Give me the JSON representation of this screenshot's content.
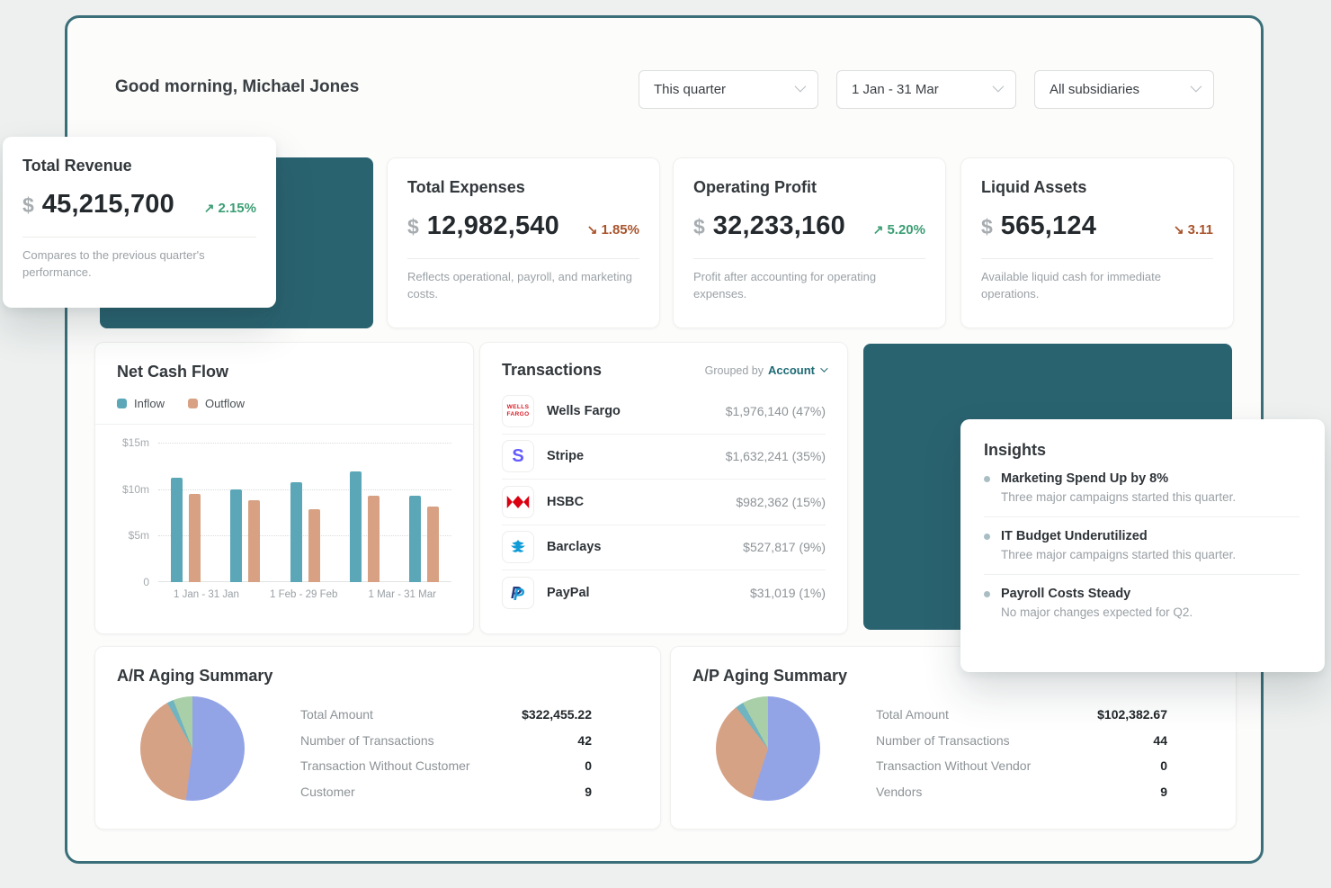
{
  "header": {
    "greeting": "Good morning, Michael Jones",
    "filters": [
      {
        "label": "This quarter"
      },
      {
        "label": "1 Jan - 31 Mar"
      },
      {
        "label": "All subsidiaries"
      }
    ]
  },
  "kpis": [
    {
      "title": "Total Revenue",
      "currency": "$",
      "value": "45,215,700",
      "trend": "up",
      "arrow": "↗",
      "change": "2.15%",
      "description": "Compares to the previous quarter's performance."
    },
    {
      "title": "Total Expenses",
      "currency": "$",
      "value": "12,982,540",
      "trend": "down",
      "arrow": "↘",
      "change": "1.85%",
      "description": "Reflects operational, payroll, and marketing costs."
    },
    {
      "title": "Operating Profit",
      "currency": "$",
      "value": "32,233,160",
      "trend": "up",
      "arrow": "↗",
      "change": "5.20%",
      "description": "Profit after accounting for operating expenses."
    },
    {
      "title": "Liquid Assets",
      "currency": "$",
      "value": "565,124",
      "trend": "down",
      "arrow": "↘",
      "change": "3.11",
      "description": "Available liquid cash for immediate operations."
    }
  ],
  "chart_data": [
    {
      "type": "bar",
      "title": "Net Cash Flow",
      "categories": [
        "1 Jan - 31 Jan",
        "1 Feb - 29 Feb",
        "1 Mar - 31 Mar"
      ],
      "series": [
        {
          "name": "Inflow",
          "color": "#5ba7b8",
          "values_millions": [
            11.2,
            10.0,
            10.7,
            11.9,
            9.3
          ]
        },
        {
          "name": "Outflow",
          "color": "#d8a183",
          "values_millions": [
            9.5,
            8.8,
            7.8,
            9.3,
            8.1
          ]
        }
      ],
      "y_ticks": [
        "$15m",
        "$10m",
        "$5m",
        "0"
      ],
      "ylim_millions": [
        0,
        15
      ],
      "grid": "dotted horizontal gridlines at $5m/$10m/$15m",
      "legend_position": "top-left",
      "note": "5 inflow/outflow bar pairs labeled by 3 month ranges"
    },
    {
      "type": "pie",
      "title": "A/R Aging Summary",
      "slices": [
        {
          "label": "periwinkle",
          "color": "#93a4e6",
          "pct": 52
        },
        {
          "label": "tan",
          "color": "#d6a285",
          "pct": 40
        },
        {
          "label": "teal",
          "color": "#6fb4c0",
          "pct": 2
        },
        {
          "label": "green",
          "color": "#a9cfa8",
          "pct": 6
        }
      ],
      "legend_position": "none"
    },
    {
      "type": "pie",
      "title": "A/P Aging Summary",
      "slices": [
        {
          "label": "periwinkle",
          "color": "#93a4e6",
          "pct": 55
        },
        {
          "label": "tan",
          "color": "#d6a285",
          "pct": 34.5
        },
        {
          "label": "teal",
          "color": "#6fb4c0",
          "pct": 2.5
        },
        {
          "label": "green",
          "color": "#a9cfa8",
          "pct": 8
        }
      ],
      "legend_position": "none"
    }
  ],
  "transactions": {
    "title": "Transactions",
    "grouped_by_label": "Grouped by",
    "grouped_by_value": "Account",
    "rows": [
      {
        "name": "Wells Fargo",
        "amount": "$1,976,140 (47%)",
        "icon": "wells-fargo-logo",
        "logo_line1": "WELLS",
        "logo_line2": "FARGO"
      },
      {
        "name": "Stripe",
        "amount": "$1,632,241 (35%)",
        "icon": "stripe-logo",
        "logo_letter": "S"
      },
      {
        "name": "HSBC",
        "amount": "$982,362 (15%)",
        "icon": "hsbc-logo"
      },
      {
        "name": "Barclays",
        "amount": "$527,817 (9%)",
        "icon": "barclays-logo"
      },
      {
        "name": "PayPal",
        "amount": "$31,019 (1%)",
        "icon": "paypal-logo",
        "logo_letter": "P"
      }
    ]
  },
  "insights": {
    "title": "Insights",
    "items": [
      {
        "title": "Marketing Spend Up by 8%",
        "description": "Three major campaigns started this quarter."
      },
      {
        "title": "IT Budget Underutilized",
        "description": "Three major campaigns started this quarter."
      },
      {
        "title": "Payroll Costs Steady",
        "description": "No major changes expected for Q2."
      }
    ]
  },
  "ar_aging": {
    "title": "A/R Aging Summary",
    "rows": [
      {
        "label": "Total Amount",
        "value": "$322,455.22"
      },
      {
        "label": "Number of Transactions",
        "value": "42"
      },
      {
        "label": "Transaction Without Customer",
        "value": "0"
      },
      {
        "label": "Customer",
        "value": "9"
      }
    ]
  },
  "ap_aging": {
    "title": "A/P Aging Summary",
    "rows": [
      {
        "label": "Total Amount",
        "value": "$102,382.67"
      },
      {
        "label": "Number of Transactions",
        "value": "44"
      },
      {
        "label": "Transaction Without Vendor",
        "value": "0"
      },
      {
        "label": "Vendors",
        "value": "9"
      }
    ]
  },
  "colors": {
    "accent_teal_block": "#2a6370",
    "frame_border": "#3a6f7a",
    "positive": "#3b9e74",
    "negative": "#a8542c",
    "inflow_bar": "#5ba7b8",
    "outflow_bar": "#d8a183"
  }
}
